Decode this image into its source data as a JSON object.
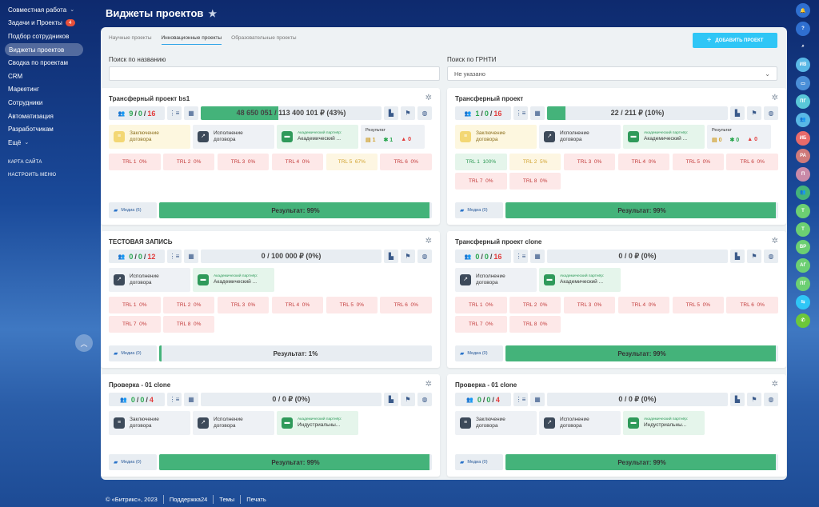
{
  "sidebar": {
    "items": [
      {
        "label": "Совместная работа",
        "chevron": "⌄"
      },
      {
        "label": "Задачи и Проекты",
        "badge": "4"
      },
      {
        "label": "Подбор сотрудников"
      },
      {
        "label": "Виджеты проектов",
        "active": true
      },
      {
        "label": "Сводка по проектам"
      },
      {
        "label": "CRM"
      },
      {
        "label": "Маркетинг"
      },
      {
        "label": "Сотрудники"
      },
      {
        "label": "Автоматизация"
      },
      {
        "label": "Разработчикам"
      },
      {
        "label": "Ещё",
        "chevron": "⌄"
      }
    ],
    "sitemap": "КАРТА САЙТА",
    "settings": "НАСТРОИТЬ МЕНЮ"
  },
  "page": {
    "title": "Виджеты проектов"
  },
  "rightbar": [
    {
      "icon": "bell-icon",
      "text": "🔔",
      "color": "#2f6fd0"
    },
    {
      "icon": "support-icon",
      "text": "?",
      "color": "#2f6fd0"
    },
    {
      "icon": "search-icon",
      "text": "⌕",
      "color": "transparent"
    },
    {
      "icon": "avatar-iv-icon",
      "text": "ИВ",
      "color": "#59b8e6"
    },
    {
      "icon": "chat-icon",
      "text": "▭",
      "color": "#4a8fd8"
    },
    {
      "icon": "avatar-pg-icon",
      "text": "ПГ",
      "color": "#59c7d8"
    },
    {
      "icon": "group-icon",
      "text": "👥",
      "color": "#59b8e6"
    },
    {
      "icon": "avatar-ib-icon",
      "text": "ИБ",
      "color": "#e86a6a"
    },
    {
      "icon": "avatar-ra-icon",
      "text": "РА",
      "color": "#cf7a7a"
    },
    {
      "icon": "avatar-p-icon",
      "text": "П",
      "color": "#c98aa8"
    },
    {
      "icon": "group-green-icon",
      "text": "👥",
      "color": "#44b37a"
    },
    {
      "icon": "avatar-t1-icon",
      "text": "Т",
      "color": "#6ccf72"
    },
    {
      "icon": "avatar-t2-icon",
      "text": "Т",
      "color": "#6ccf72"
    },
    {
      "icon": "avatar-vr-icon",
      "text": "ВР",
      "color": "#6ccf72"
    },
    {
      "icon": "avatar-ag-icon",
      "text": "АГ",
      "color": "#6ccf72"
    },
    {
      "icon": "avatar-pg2-icon",
      "text": "ПГ",
      "color": "#6ccf72"
    },
    {
      "icon": "telephony-icon",
      "text": "⇆",
      "color": "#2fc6f6"
    },
    {
      "icon": "phone-icon",
      "text": "✆",
      "color": "#6cc73a"
    }
  ],
  "tabs": [
    {
      "label": "Научные проекты"
    },
    {
      "label": "Инновационные проекты",
      "active": true
    },
    {
      "label": "Образовательные проекты"
    }
  ],
  "add_button": "ДОБАВИТЬ ПРОЕКТ",
  "filters": {
    "name_label": "Поиск по названию",
    "name_value": "",
    "grnti_label": "Поиск по ГРНТИ",
    "grnti_value": "Не указано"
  },
  "cards": [
    {
      "title": "Трансферный проект bs1",
      "counts": {
        "green": "9",
        "gray": "0",
        "red": "16"
      },
      "amount": "48 650 051 / 113 400 101 ₽ (43%)",
      "amount_pct": 43,
      "docs": [
        {
          "kind": "yellow",
          "icon": "contract-conclusion-icon",
          "l1": "Заключение",
          "l2": "договора"
        },
        {
          "kind": "gray",
          "icon": "contract-execution-icon",
          "l1": "Исполнение",
          "l2": "договора"
        },
        {
          "kind": "green",
          "icon": "partner-icon",
          "small": "Академический партнёр:",
          "l1": "Академический ...",
          "l2": ""
        }
      ],
      "result_box": {
        "label": "Результат",
        "v1": "1",
        "v2": "1",
        "v3": "0"
      },
      "trl": [
        {
          "label": "TRL 1",
          "value": "0%",
          "state": "none"
        },
        {
          "label": "TRL 2",
          "value": "0%",
          "state": "none"
        },
        {
          "label": "TRL 3",
          "value": "0%",
          "state": "none"
        },
        {
          "label": "TRL 4",
          "value": "0%",
          "state": "none"
        },
        {
          "label": "TRL 5",
          "value": "67%",
          "state": "part"
        },
        {
          "label": "TRL 6",
          "value": "0%",
          "state": "none"
        }
      ],
      "media": "Медиа (6)",
      "result": "Результат: 99%",
      "result_pct": 99
    },
    {
      "title": "Трансферный проект",
      "counts": {
        "green": "1",
        "gray": "0",
        "red": "16"
      },
      "amount": "22 / 211 ₽ (10%)",
      "amount_pct": 10,
      "docs": [
        {
          "kind": "yellow",
          "icon": "contract-conclusion-icon",
          "l1": "Заключение",
          "l2": "договора"
        },
        {
          "kind": "gray",
          "icon": "contract-execution-icon",
          "l1": "Исполнение",
          "l2": "договора"
        },
        {
          "kind": "green",
          "icon": "partner-icon",
          "small": "Академический партнёр:",
          "l1": "Академический ...",
          "l2": ""
        }
      ],
      "result_box": {
        "label": "Результат",
        "v1": "0",
        "v2": "0",
        "v3": "0"
      },
      "trl": [
        {
          "label": "TRL 1",
          "value": "100%",
          "state": "full"
        },
        {
          "label": "TRL 2",
          "value": "5%",
          "state": "part"
        },
        {
          "label": "TRL 3",
          "value": "0%",
          "state": "none"
        },
        {
          "label": "TRL 4",
          "value": "0%",
          "state": "none"
        },
        {
          "label": "TRL 5",
          "value": "0%",
          "state": "none"
        },
        {
          "label": "TRL 6",
          "value": "0%",
          "state": "none"
        },
        {
          "label": "TRL 7",
          "value": "0%",
          "state": "none"
        },
        {
          "label": "TRL 8",
          "value": "0%",
          "state": "none"
        }
      ],
      "media": "Медиа (0)",
      "result": "Результат: 99%",
      "result_pct": 99
    },
    {
      "title": "ТЕСТОВАЯ ЗАПИСЬ",
      "counts": {
        "green": "0",
        "gray": "0",
        "red": "12"
      },
      "amount": "0 / 100 000 ₽ (0%)",
      "amount_pct": 0,
      "docs": [
        {
          "kind": "gray",
          "icon": "contract-execution-icon",
          "l1": "Исполнение",
          "l2": "договора"
        },
        {
          "kind": "green",
          "icon": "partner-icon",
          "small": "Академический партнёр:",
          "l1": "Академический ...",
          "l2": ""
        }
      ],
      "trl": [
        {
          "label": "TRL 1",
          "value": "0%",
          "state": "none"
        },
        {
          "label": "TRL 2",
          "value": "0%",
          "state": "none"
        },
        {
          "label": "TRL 3",
          "value": "0%",
          "state": "none"
        },
        {
          "label": "TRL 4",
          "value": "0%",
          "state": "none"
        },
        {
          "label": "TRL 5",
          "value": "0%",
          "state": "none"
        },
        {
          "label": "TRL 6",
          "value": "0%",
          "state": "none"
        },
        {
          "label": "TRL 7",
          "value": "0%",
          "state": "none"
        },
        {
          "label": "TRL 8",
          "value": "0%",
          "state": "none"
        }
      ],
      "media": "Медиа (0)",
      "result": "Результат: 1%",
      "result_pct": 1
    },
    {
      "title": "Трансферный проект clone",
      "counts": {
        "green": "0",
        "gray": "0",
        "red": "16"
      },
      "amount": "0 / 0 ₽ (0%)",
      "amount_pct": 0,
      "docs": [
        {
          "kind": "gray",
          "icon": "contract-execution-icon",
          "l1": "Исполнение",
          "l2": "договора"
        },
        {
          "kind": "green",
          "icon": "partner-icon",
          "small": "Академический партнёр:",
          "l1": "Академический ...",
          "l2": ""
        }
      ],
      "trl": [
        {
          "label": "TRL 1",
          "value": "0%",
          "state": "none"
        },
        {
          "label": "TRL 2",
          "value": "0%",
          "state": "none"
        },
        {
          "label": "TRL 3",
          "value": "0%",
          "state": "none"
        },
        {
          "label": "TRL 4",
          "value": "0%",
          "state": "none"
        },
        {
          "label": "TRL 5",
          "value": "0%",
          "state": "none"
        },
        {
          "label": "TRL 6",
          "value": "0%",
          "state": "none"
        },
        {
          "label": "TRL 7",
          "value": "0%",
          "state": "none"
        },
        {
          "label": "TRL 8",
          "value": "0%",
          "state": "none"
        }
      ],
      "media": "Медиа (0)",
      "result": "Результат: 99%",
      "result_pct": 99
    },
    {
      "title": "Проверка - 01 clone",
      "counts": {
        "green": "0",
        "gray": "0",
        "red": "4"
      },
      "amount": "0 / 0 ₽ (0%)",
      "amount_pct": 0,
      "docs": [
        {
          "kind": "gray",
          "icon": "contract-conclusion-icon",
          "l1": "Заключение",
          "l2": "договора"
        },
        {
          "kind": "gray",
          "icon": "contract-execution-icon",
          "l1": "Исполнение",
          "l2": "договора"
        },
        {
          "kind": "green",
          "icon": "partner-icon",
          "small": "Академический партнёр:",
          "l1": "Индустриальны...",
          "l2": ""
        }
      ],
      "trl": [],
      "media": "Медиа (0)",
      "result": "Результат: 99%",
      "result_pct": 99
    },
    {
      "title": "Проверка - 01 clone",
      "counts": {
        "green": "0",
        "gray": "0",
        "red": "4"
      },
      "amount": "0 / 0 ₽ (0%)",
      "amount_pct": 0,
      "docs": [
        {
          "kind": "gray",
          "icon": "contract-conclusion-icon",
          "l1": "Заключение",
          "l2": "договора"
        },
        {
          "kind": "gray",
          "icon": "contract-execution-icon",
          "l1": "Исполнение",
          "l2": "договора"
        },
        {
          "kind": "green",
          "icon": "partner-icon",
          "small": "Академический партнёр:",
          "l1": "Индустриальны...",
          "l2": ""
        }
      ],
      "trl": [],
      "media": "Медиа (0)",
      "result": "Результат: 99%",
      "result_pct": 99
    }
  ],
  "footer": {
    "copyright": "© «Битрикс», 2023",
    "links": [
      "Поддержка24",
      "Темы",
      "Печать"
    ]
  }
}
